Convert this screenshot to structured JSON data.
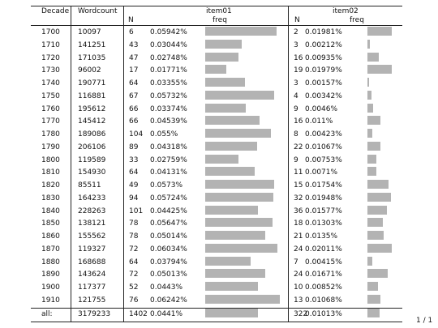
{
  "headers": {
    "decade": "Decade",
    "wordcount": "Wordcount",
    "item01": "item01",
    "item02": "item02",
    "n": "N",
    "freq": "freq"
  },
  "rows": [
    {
      "decade": "1700",
      "wordcount": "10097",
      "n1": "6",
      "f1": "0.05942%",
      "v1": 0.05942,
      "n2": "2",
      "f2": "0.01981%",
      "v2": 0.01981
    },
    {
      "decade": "1710",
      "wordcount": "141251",
      "n1": "43",
      "f1": "0.03044%",
      "v1": 0.03044,
      "n2": "3",
      "f2": "0.00212%",
      "v2": 0.00212
    },
    {
      "decade": "1720",
      "wordcount": "171035",
      "n1": "47",
      "f1": "0.02748%",
      "v1": 0.02748,
      "n2": "16",
      "f2": "0.00935%",
      "v2": 0.00935
    },
    {
      "decade": "1730",
      "wordcount": "96002",
      "n1": "17",
      "f1": "0.01771%",
      "v1": 0.01771,
      "n2": "19",
      "f2": "0.01979%",
      "v2": 0.01979
    },
    {
      "decade": "1740",
      "wordcount": "190771",
      "n1": "64",
      "f1": "0.03355%",
      "v1": 0.03355,
      "n2": "3",
      "f2": "0.00157%",
      "v2": 0.00157
    },
    {
      "decade": "1750",
      "wordcount": "116881",
      "n1": "67",
      "f1": "0.05732%",
      "v1": 0.05732,
      "n2": "4",
      "f2": "0.00342%",
      "v2": 0.00342
    },
    {
      "decade": "1760",
      "wordcount": "195612",
      "n1": "66",
      "f1": "0.03374%",
      "v1": 0.03374,
      "n2": "9",
      "f2": "0.0046%",
      "v2": 0.0046
    },
    {
      "decade": "1770",
      "wordcount": "145412",
      "n1": "66",
      "f1": "0.04539%",
      "v1": 0.04539,
      "n2": "16",
      "f2": "0.011%",
      "v2": 0.011
    },
    {
      "decade": "1780",
      "wordcount": "189086",
      "n1": "104",
      "f1": "0.055%",
      "v1": 0.055,
      "n2": "8",
      "f2": "0.00423%",
      "v2": 0.00423
    },
    {
      "decade": "1790",
      "wordcount": "206106",
      "n1": "89",
      "f1": "0.04318%",
      "v1": 0.04318,
      "n2": "22",
      "f2": "0.01067%",
      "v2": 0.01067
    },
    {
      "decade": "1800",
      "wordcount": "119589",
      "n1": "33",
      "f1": "0.02759%",
      "v1": 0.02759,
      "n2": "9",
      "f2": "0.00753%",
      "v2": 0.00753
    },
    {
      "decade": "1810",
      "wordcount": "154930",
      "n1": "64",
      "f1": "0.04131%",
      "v1": 0.04131,
      "n2": "11",
      "f2": "0.0071%",
      "v2": 0.0071
    },
    {
      "decade": "1820",
      "wordcount": "85511",
      "n1": "49",
      "f1": "0.0573%",
      "v1": 0.0573,
      "n2": "15",
      "f2": "0.01754%",
      "v2": 0.01754
    },
    {
      "decade": "1830",
      "wordcount": "164233",
      "n1": "94",
      "f1": "0.05724%",
      "v1": 0.05724,
      "n2": "32",
      "f2": "0.01948%",
      "v2": 0.01948
    },
    {
      "decade": "1840",
      "wordcount": "228263",
      "n1": "101",
      "f1": "0.04425%",
      "v1": 0.04425,
      "n2": "36",
      "f2": "0.01577%",
      "v2": 0.01577
    },
    {
      "decade": "1850",
      "wordcount": "138121",
      "n1": "78",
      "f1": "0.05647%",
      "v1": 0.05647,
      "n2": "18",
      "f2": "0.01303%",
      "v2": 0.01303
    },
    {
      "decade": "1860",
      "wordcount": "155562",
      "n1": "78",
      "f1": "0.05014%",
      "v1": 0.05014,
      "n2": "21",
      "f2": "0.0135%",
      "v2": 0.0135
    },
    {
      "decade": "1870",
      "wordcount": "119327",
      "n1": "72",
      "f1": "0.06034%",
      "v1": 0.06034,
      "n2": "24",
      "f2": "0.02011%",
      "v2": 0.02011
    },
    {
      "decade": "1880",
      "wordcount": "168688",
      "n1": "64",
      "f1": "0.03794%",
      "v1": 0.03794,
      "n2": "7",
      "f2": "0.00415%",
      "v2": 0.00415
    },
    {
      "decade": "1890",
      "wordcount": "143624",
      "n1": "72",
      "f1": "0.05013%",
      "v1": 0.05013,
      "n2": "24",
      "f2": "0.01671%",
      "v2": 0.01671
    },
    {
      "decade": "1900",
      "wordcount": "117377",
      "n1": "52",
      "f1": "0.0443%",
      "v1": 0.0443,
      "n2": "10",
      "f2": "0.00852%",
      "v2": 0.00852
    },
    {
      "decade": "1910",
      "wordcount": "121755",
      "n1": "76",
      "f1": "0.06242%",
      "v1": 0.06242,
      "n2": "13",
      "f2": "0.01068%",
      "v2": 0.01068
    }
  ],
  "total": {
    "decade": "all:",
    "wordcount": "3179233",
    "n1": "1402",
    "f1": "0.0441%",
    "v1": 0.0441,
    "n2": "322",
    "f2": "0.01013%",
    "v2": 0.01013
  },
  "scale": {
    "item01_max": 0.06242,
    "item02_max": 0.02011
  },
  "page_number": "1 / 1"
}
